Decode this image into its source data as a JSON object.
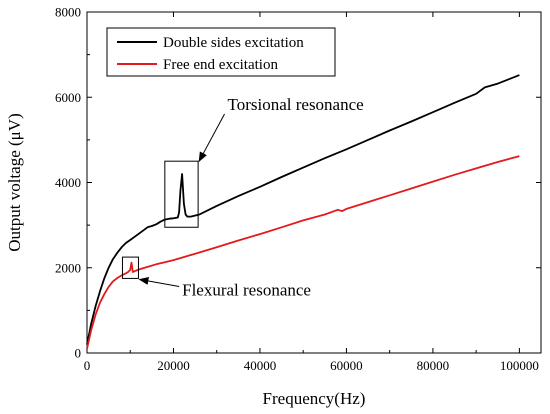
{
  "chart_data": {
    "type": "line",
    "xlabel": "Frequency(Hz)",
    "ylabel": "Output voltage (μV)",
    "xlim": [
      0,
      105000
    ],
    "ylim": [
      0,
      8000
    ],
    "x_ticks": [
      0,
      20000,
      40000,
      60000,
      80000,
      100000
    ],
    "y_ticks": [
      0,
      2000,
      4000,
      6000,
      8000
    ],
    "x_tick_labels": [
      "0",
      "20000",
      "40000",
      "60000",
      "80000",
      "100000"
    ],
    "y_tick_labels": [
      "0",
      "2000",
      "4000",
      "6000",
      "8000"
    ],
    "grid": false,
    "legend_position": "top-left",
    "series": [
      {
        "name": "Double sides excitation",
        "color": "#000000",
        "x": [
          0,
          1000,
          2000,
          3000,
          4000,
          5000,
          6000,
          7000,
          8000,
          9000,
          10000,
          12000,
          14000,
          15000,
          16000,
          17000,
          18000,
          19000,
          20000,
          20500,
          21000,
          21300,
          21600,
          22000,
          22400,
          22800,
          23200,
          24000,
          26000,
          28000,
          30000,
          35000,
          40000,
          45000,
          50000,
          55000,
          60000,
          65000,
          70000,
          75000,
          80000,
          85000,
          90000,
          92000,
          95000,
          100000
        ],
        "values": [
          200,
          700,
          1100,
          1450,
          1750,
          2000,
          2200,
          2350,
          2480,
          2580,
          2650,
          2800,
          2950,
          2980,
          3020,
          3080,
          3130,
          3150,
          3160,
          3170,
          3180,
          3300,
          3800,
          4200,
          3500,
          3250,
          3200,
          3200,
          3250,
          3350,
          3450,
          3680,
          3900,
          4130,
          4350,
          4570,
          4780,
          5000,
          5220,
          5430,
          5650,
          5870,
          6080,
          6230,
          6320,
          6520
        ]
      },
      {
        "name": "Free end excitation",
        "color": "#e31a1c",
        "x": [
          0,
          1000,
          2000,
          3000,
          4000,
          5000,
          6000,
          7000,
          8000,
          9000,
          9500,
          10000,
          10300,
          10600,
          11000,
          12000,
          14000,
          16000,
          18000,
          20000,
          25000,
          30000,
          35000,
          40000,
          45000,
          50000,
          55000,
          58000,
          59000,
          60000,
          65000,
          70000,
          75000,
          80000,
          85000,
          90000,
          95000,
          100000
        ],
        "values": [
          100,
          550,
          900,
          1180,
          1380,
          1550,
          1680,
          1760,
          1820,
          1870,
          1900,
          1950,
          2120,
          1900,
          1920,
          1960,
          2020,
          2080,
          2130,
          2180,
          2330,
          2480,
          2640,
          2790,
          2950,
          3110,
          3250,
          3360,
          3330,
          3380,
          3540,
          3700,
          3860,
          4020,
          4180,
          4330,
          4480,
          4620
        ]
      }
    ],
    "annotations": [
      {
        "text": "Torsional resonance",
        "box": {
          "x": [
            18000,
            25700
          ],
          "y": [
            2950,
            4500
          ]
        },
        "arrow_to": [
          25700,
          4500
        ],
        "label_at": [
          32500,
          5700
        ]
      },
      {
        "text": "Flexural resonance",
        "box": {
          "x": [
            8200,
            11900
          ],
          "y": [
            1750,
            2250
          ]
        },
        "arrow_to": [
          11900,
          1750
        ],
        "label_at": [
          22000,
          1350
        ]
      }
    ]
  }
}
